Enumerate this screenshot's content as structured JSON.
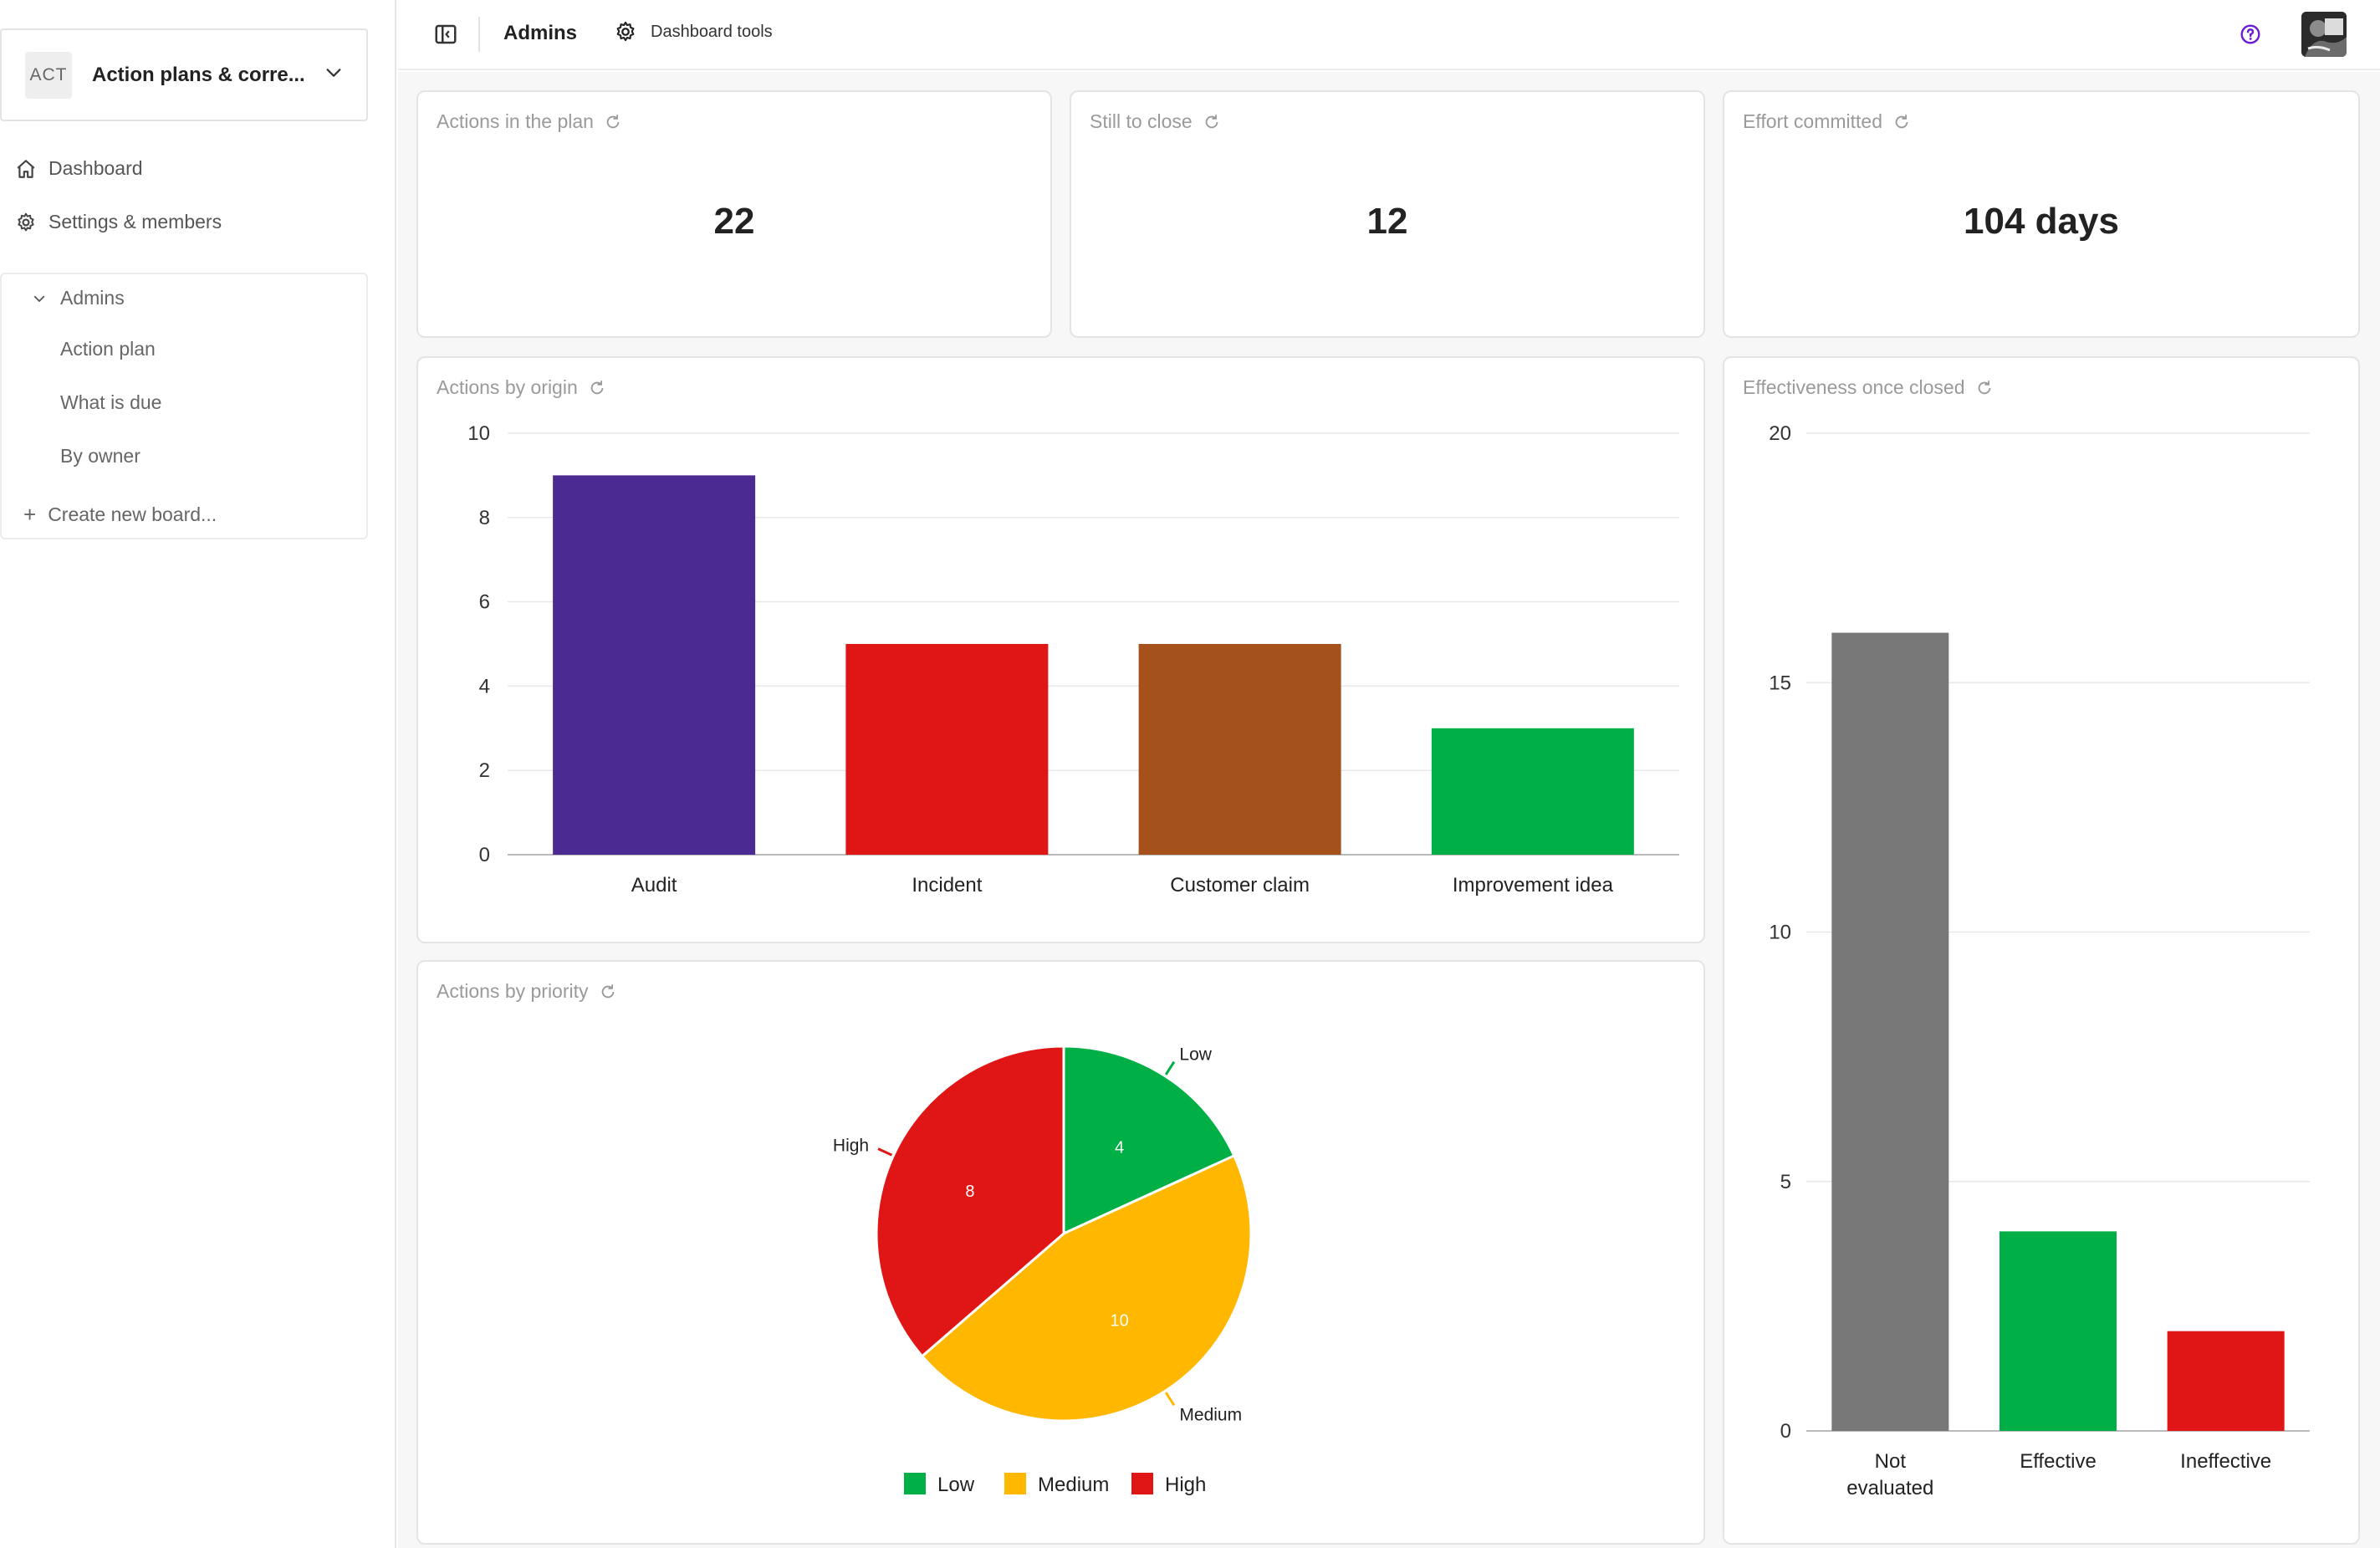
{
  "workspace": {
    "badge": "ACT",
    "title": "Action plans & corre..."
  },
  "nav": {
    "dashboard": "Dashboard",
    "settings": "Settings & members"
  },
  "boards": {
    "group_label": "Admins",
    "items": [
      "Action plan",
      "What is due",
      "By owner"
    ],
    "create_label": "Create new board..."
  },
  "topbar": {
    "title": "Admins",
    "tools_label": "Dashboard tools"
  },
  "kpis": [
    {
      "title": "Actions in the plan",
      "value": "22"
    },
    {
      "title": "Still to close",
      "value": "12"
    },
    {
      "title": "Effort committed",
      "value": "104 days"
    }
  ],
  "cards": {
    "origin_title": "Actions by origin",
    "priority_title": "Actions by priority",
    "effectiveness_title": "Effectiveness once closed"
  },
  "chart_data": [
    {
      "type": "bar",
      "title": "Actions by origin",
      "categories": [
        "Audit",
        "Incident",
        "Customer claim",
        "Improvement idea"
      ],
      "values": [
        9,
        5,
        5,
        3
      ],
      "colors": [
        "#4b2a92",
        "#e01616",
        "#a5511b",
        "#00b046"
      ],
      "ylim": [
        0,
        10
      ],
      "yticks": [
        0,
        2,
        4,
        6,
        8,
        10
      ],
      "grid": true
    },
    {
      "type": "pie",
      "title": "Actions by priority",
      "categories": [
        "Low",
        "Medium",
        "High"
      ],
      "values": [
        4,
        10,
        8
      ],
      "colors": [
        "#00b046",
        "#ffb700",
        "#e01616"
      ],
      "legend": "bottom"
    },
    {
      "type": "bar",
      "title": "Effectiveness once closed",
      "categories": [
        [
          "Not",
          "evaluated"
        ],
        [
          "Effective"
        ],
        [
          "Ineffective"
        ]
      ],
      "values": [
        16,
        4,
        2
      ],
      "colors": [
        "#787878",
        "#00b046",
        "#e01616"
      ],
      "ylim": [
        0,
        20
      ],
      "yticks": [
        0,
        5,
        10,
        15,
        20
      ],
      "grid": true
    }
  ]
}
